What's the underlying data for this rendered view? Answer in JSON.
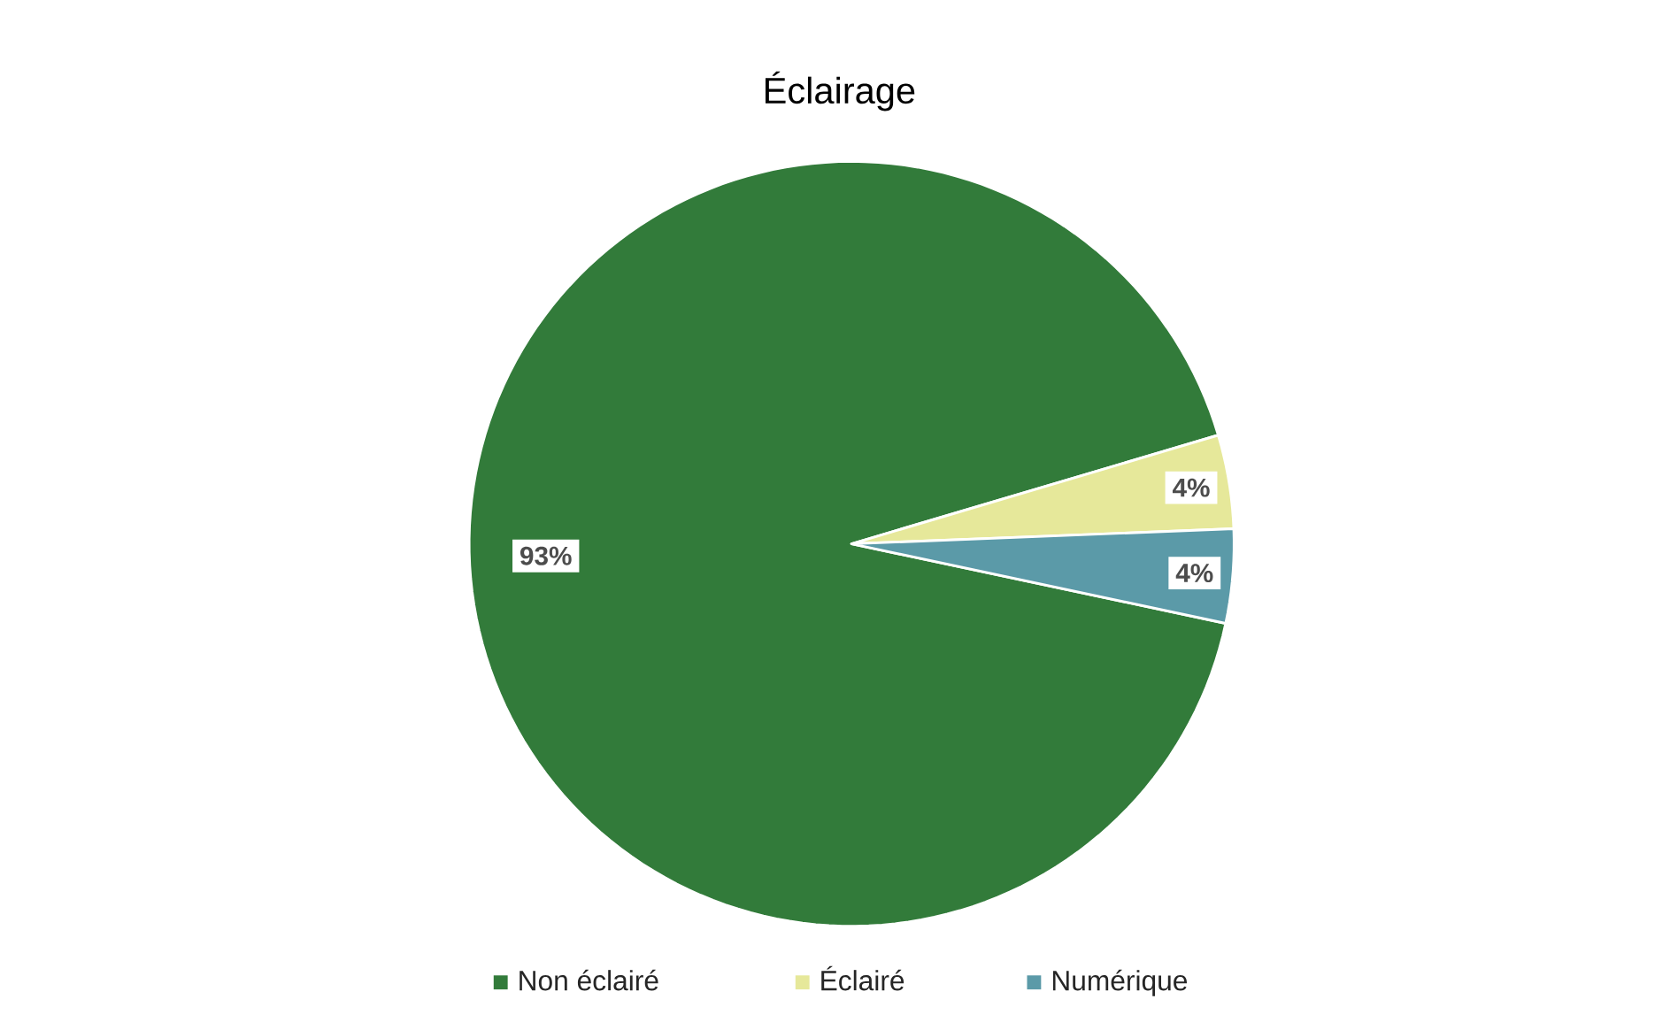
{
  "chart_data": {
    "type": "pie",
    "title": "Éclairage",
    "categories": [
      "Non éclairé",
      "Éclairé",
      "Numérique"
    ],
    "values": [
      93,
      4,
      4
    ],
    "colors": [
      "#327b3a",
      "#e6e89a",
      "#5b9aa8"
    ],
    "value_labels": [
      "93%",
      "4%",
      "4%"
    ],
    "legend": "bottom"
  }
}
